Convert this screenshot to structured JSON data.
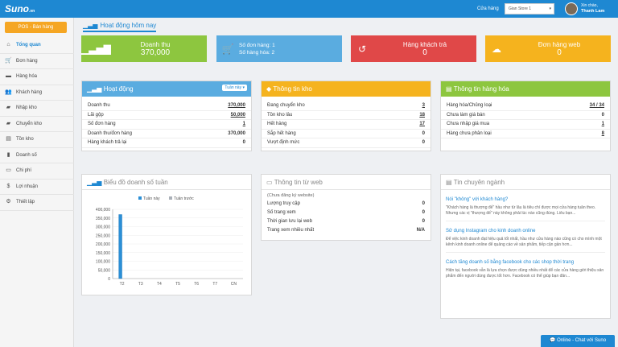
{
  "header": {
    "logo": "Suno",
    "logo_suffix": ".vn",
    "store_label": "Cửa hàng",
    "store_value": "Gian Store 1",
    "greeting": "Xin chào,",
    "user_name": "Thanh Lam"
  },
  "sidebar": {
    "pos_button": "POS - Bán hàng",
    "items": [
      {
        "label": "Tổng quan",
        "icon": "home-icon"
      },
      {
        "label": "Đơn hàng",
        "icon": "cart-icon"
      },
      {
        "label": "Hàng hóa",
        "icon": "tag-icon"
      },
      {
        "label": "Khách hàng",
        "icon": "users-icon"
      },
      {
        "label": "Nhập kho",
        "icon": "truck-in-icon"
      },
      {
        "label": "Chuyển kho",
        "icon": "truck-move-icon"
      },
      {
        "label": "Tồn kho",
        "icon": "box-icon"
      },
      {
        "label": "Doanh số",
        "icon": "chart-icon"
      },
      {
        "label": "Chi phí",
        "icon": "expense-icon"
      },
      {
        "label": "Lợi nhuận",
        "icon": "dollar-icon"
      },
      {
        "label": "Thiết lập",
        "icon": "settings-icon"
      }
    ]
  },
  "page_title": "Hoạt động hôm nay",
  "stats": {
    "revenue_label": "Doanh thu",
    "revenue_value": "370,000",
    "orders_line1": "Số đơn hàng: 1",
    "orders_line2": "Số hàng hóa: 2",
    "returns_label": "Hàng khách trả",
    "returns_value": "0",
    "web_label": "Đơn hàng web",
    "web_value": "0"
  },
  "activity": {
    "title": "Hoạt động",
    "period": "Tuần này",
    "rows": [
      {
        "label": "Doanh thu",
        "value": "370,000"
      },
      {
        "label": "Lãi gộp",
        "value": "50,000"
      },
      {
        "label": "Số đơn hàng",
        "value": "1"
      },
      {
        "label": "Doanh thu/đơn hàng",
        "value": "370,000"
      },
      {
        "label": "Hàng khách trả lại",
        "value": "0"
      }
    ]
  },
  "stock": {
    "title": "Thông tin kho",
    "rows": [
      {
        "label": "Đang chuyển kho",
        "value": "3"
      },
      {
        "label": "Tồn kho lâu",
        "value": "18"
      },
      {
        "label": "Hết hàng",
        "value": "17"
      },
      {
        "label": "Sắp hết hàng",
        "value": "0"
      },
      {
        "label": "Vượt định mức",
        "value": "0"
      }
    ]
  },
  "goods": {
    "title": "Thông tin hàng hóa",
    "rows": [
      {
        "label": "Hàng hóa/Chủng loại",
        "value": "34 / 34"
      },
      {
        "label": "Chưa làm giá bán",
        "value": "0"
      },
      {
        "label": "Chưa nhập giá mua",
        "value": "1"
      },
      {
        "label": "Hàng chưa phân loại",
        "value": "8"
      }
    ]
  },
  "weekly_chart_title": "Biểu đồ doanh số tuần",
  "web_info": {
    "title": "Thông tin từ web",
    "note": "(Chưa đăng ký website)",
    "rows": [
      {
        "label": "Lượng truy cập",
        "value": "0"
      },
      {
        "label": "Số trang xem",
        "value": "0"
      },
      {
        "label": "Thời gian lưu lại web",
        "value": "0"
      },
      {
        "label": "Trang xem nhiều nhất",
        "value": "N/A"
      }
    ]
  },
  "news": {
    "title": "Tin chuyên ngành",
    "items": [
      {
        "title": "Nói \"không\" với khách hàng?",
        "body": "\"Khách hàng là thượng đế\" hầu như từ lâu là tiêu chí được mọi cửa hàng tuân theo. Nhưng các vị \"thượng đế\" này không phải lúc nào cũng đúng. Liêu bạn..."
      },
      {
        "title": "Sử dụng Instagram cho kinh doanh online",
        "body": "Để việc kinh doanh đạt hiệu quả tốt nhất, hầu như cửa hàng nào cũng có cho mình một kênh kinh doanh online để quảng cáo về sản phẩm, tiếp cận gần hơn..."
      },
      {
        "title": "Cách tăng doanh số bằng facebook cho các shop thời trang",
        "body": "Hiện tại, facebook vẫn là lựa chọn được dùng nhiều nhất để các cửa hàng giới thiệu sản phẩm đến người dùng được tốt hơn. Facebook có thể giúp bạn đăn..."
      }
    ]
  },
  "chat_label": "Online - Chat với Suno",
  "colors": {
    "blue": "#1e88d2",
    "green": "#8dc63f",
    "lightblue": "#5aace0",
    "red": "#e04848",
    "yellow": "#f5b31e"
  },
  "chart_data": {
    "type": "bar",
    "categories": [
      "T2",
      "T3",
      "T4",
      "T5",
      "T6",
      "T7",
      "CN"
    ],
    "series": [
      {
        "name": "Tuần này",
        "values": [
          370000,
          0,
          0,
          0,
          0,
          0,
          0
        ]
      },
      {
        "name": "Tuần trước",
        "values": [
          0,
          0,
          0,
          0,
          0,
          0,
          0
        ]
      }
    ],
    "yticks": [
      "400,000",
      "350,000",
      "300,000",
      "250,000",
      "200,000",
      "150,000",
      "100,000",
      "50,000",
      "0"
    ],
    "ylim": [
      0,
      400000
    ],
    "legend": "top"
  }
}
